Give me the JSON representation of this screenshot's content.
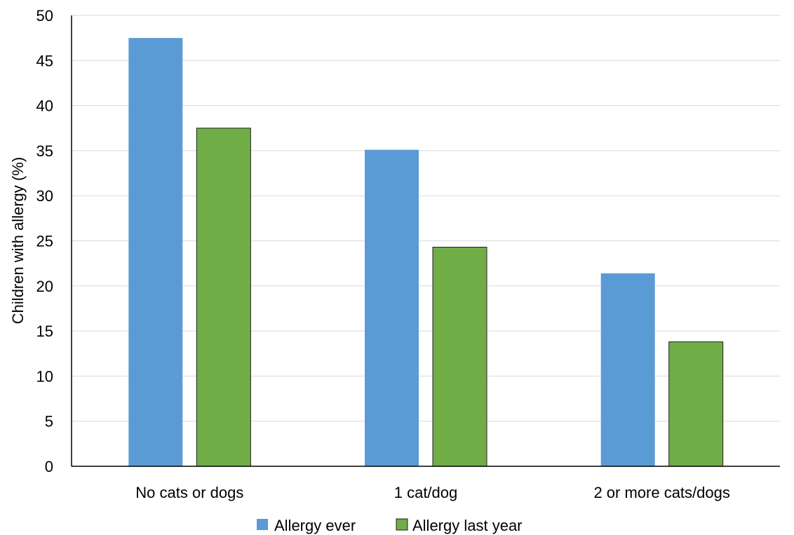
{
  "chart_data": {
    "type": "bar",
    "title": "",
    "xlabel": "",
    "ylabel": "Children with allergy (%)",
    "ylim": [
      0,
      50
    ],
    "yticks": [
      0,
      5,
      10,
      15,
      20,
      25,
      30,
      35,
      40,
      45,
      50
    ],
    "grid": true,
    "legend_position": "bottom",
    "categories": [
      "No cats or dogs",
      "1 cat/dog",
      "2 or more cats/dogs"
    ],
    "series": [
      {
        "name": "Allergy ever",
        "color": "#5b9bd5",
        "values": [
          47.5,
          35.1,
          21.4
        ]
      },
      {
        "name": "Allergy last year",
        "color": "#70ad47",
        "values": [
          37.5,
          24.3,
          13.8
        ]
      }
    ]
  }
}
